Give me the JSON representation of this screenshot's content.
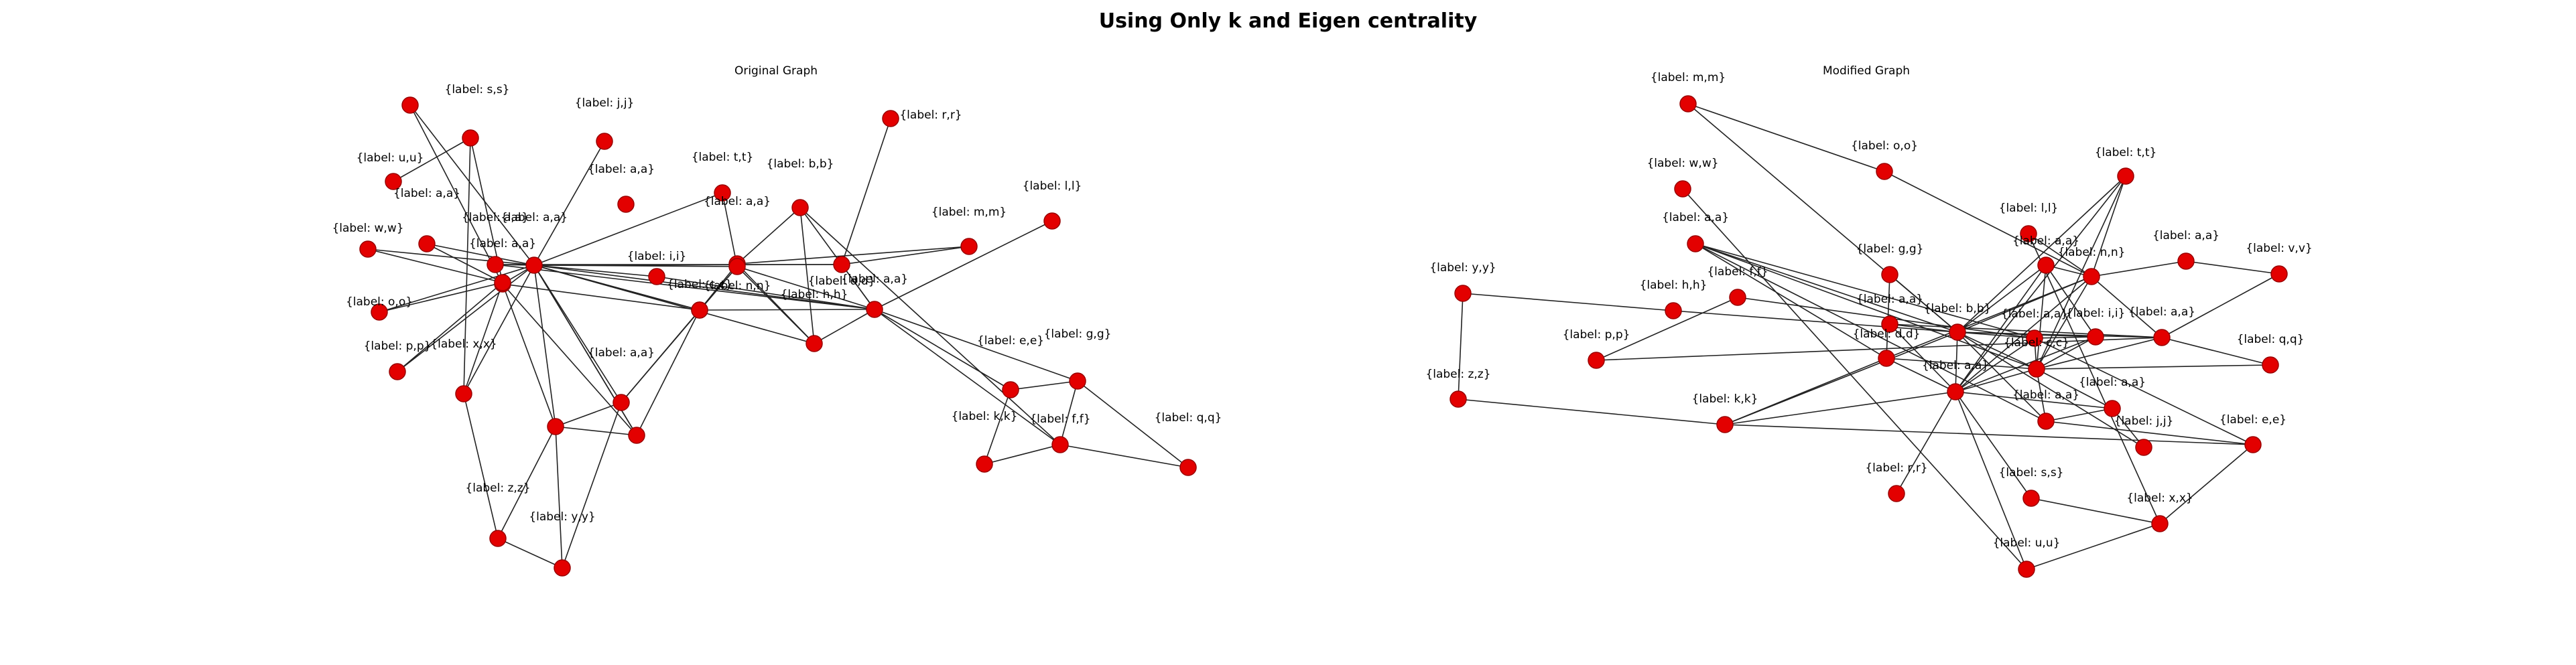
{
  "title": "Using Only k and Eigen centrality",
  "panels": [
    {
      "title": "Original Graph",
      "nodes": [
        {
          "id": "o1",
          "label": "{label: s,s}"
        },
        {
          "id": "o2",
          "label": "{label: j,j}"
        },
        {
          "id": "o3",
          "label": "{label: r,r}"
        },
        {
          "id": "o4",
          "label": "{label: u,u}"
        },
        {
          "id": "o5",
          "label": "{label: t,t}"
        },
        {
          "id": "o6",
          "label": "{label: b,b}"
        },
        {
          "id": "o7",
          "label": "{label: a,a}"
        },
        {
          "id": "o8",
          "label": "{label: l,l}"
        },
        {
          "id": "o9",
          "label": "{label: a,a}"
        },
        {
          "id": "o10",
          "label": "{label: w,w}"
        },
        {
          "id": "o11",
          "label": "{label: m,m}"
        },
        {
          "id": "o12",
          "label": "{label: a,a}"
        },
        {
          "id": "o13",
          "label": "{label: n,n}"
        },
        {
          "id": "o14",
          "label": "{label: d,d}"
        },
        {
          "id": "o15",
          "label": "{label: a,a}"
        },
        {
          "id": "o16",
          "label": "{label: i,i}"
        },
        {
          "id": "o17",
          "label": "{label: o,o}"
        },
        {
          "id": "o18",
          "label": "{label: c,c}"
        },
        {
          "id": "o19",
          "label": "{label: a,a}"
        },
        {
          "id": "o20",
          "label": "{label: h,h}"
        },
        {
          "id": "o21",
          "label": "{label: p,p}"
        },
        {
          "id": "o22",
          "label": "{label: x,x}"
        },
        {
          "id": "o23",
          "label": "{label: e,e}"
        },
        {
          "id": "o24",
          "label": "{label: g,g}"
        },
        {
          "id": "o25",
          "label": "{label: a,a}"
        },
        {
          "id": "o26",
          "label": "{label: a,a}"
        },
        {
          "id": "o27",
          "label": "{label: a,a}"
        },
        {
          "id": "o28",
          "label": "{label: f,f}"
        },
        {
          "id": "o29",
          "label": "{label: k,k}"
        },
        {
          "id": "o30",
          "label": "{label: q,q}"
        },
        {
          "id": "o31",
          "label": "{label: z,z}"
        },
        {
          "id": "o32",
          "label": "{label: y,y}"
        },
        {
          "id": "o33",
          "label": ""
        },
        {
          "id": "o34",
          "label": ""
        },
        {
          "id": "o35",
          "label": ""
        },
        {
          "id": "o36",
          "label": ""
        },
        {
          "id": "o37",
          "label": ""
        }
      ],
      "edges": [
        [
          "o1",
          "o26"
        ],
        [
          "o1",
          "o27"
        ],
        [
          "o4",
          "o33"
        ],
        [
          "o33",
          "o34"
        ],
        [
          "o33",
          "o22"
        ],
        [
          "o2",
          "o26"
        ],
        [
          "o3",
          "o14"
        ],
        [
          "o5",
          "o26"
        ],
        [
          "o5",
          "o13"
        ],
        [
          "o6",
          "o12"
        ],
        [
          "o6",
          "o28"
        ],
        [
          "o6",
          "o20"
        ],
        [
          "o6",
          "o19"
        ],
        [
          "o8",
          "o19"
        ],
        [
          "o9",
          "o26"
        ],
        [
          "o9",
          "o34"
        ],
        [
          "o10",
          "o34"
        ],
        [
          "o10",
          "o26"
        ],
        [
          "o11",
          "o14"
        ],
        [
          "o11",
          "o12"
        ],
        [
          "o12",
          "o13"
        ],
        [
          "o12",
          "o37"
        ],
        [
          "o13",
          "o19"
        ],
        [
          "o14",
          "o19"
        ],
        [
          "o15",
          "o26"
        ],
        [
          "o15",
          "o14"
        ],
        [
          "o15",
          "o19"
        ],
        [
          "o16",
          "o26"
        ],
        [
          "o16",
          "o19"
        ],
        [
          "o17",
          "o34"
        ],
        [
          "o17",
          "o26"
        ],
        [
          "o18",
          "o26"
        ],
        [
          "o18",
          "o19"
        ],
        [
          "o18",
          "o13"
        ],
        [
          "o19",
          "o23"
        ],
        [
          "o19",
          "o24"
        ],
        [
          "o19",
          "o28"
        ],
        [
          "o19",
          "o20"
        ],
        [
          "o20",
          "o13"
        ],
        [
          "o20",
          "o12"
        ],
        [
          "o20",
          "o26"
        ],
        [
          "o21",
          "o26"
        ],
        [
          "o21",
          "o34"
        ],
        [
          "o22",
          "o26"
        ],
        [
          "o22",
          "o34"
        ],
        [
          "o22",
          "o31"
        ],
        [
          "o23",
          "o24"
        ],
        [
          "o23",
          "o29"
        ],
        [
          "o24",
          "o30"
        ],
        [
          "o24",
          "o28"
        ],
        [
          "o28",
          "o29"
        ],
        [
          "o28",
          "o30"
        ],
        [
          "o25",
          "o26"
        ],
        [
          "o25",
          "o32"
        ],
        [
          "o25",
          "o37"
        ],
        [
          "o25",
          "o35"
        ],
        [
          "o25",
          "o13"
        ],
        [
          "o26",
          "o27"
        ],
        [
          "o26",
          "o36"
        ],
        [
          "o26",
          "o35"
        ],
        [
          "o26",
          "o37"
        ],
        [
          "o26",
          "o13"
        ],
        [
          "o26",
          "o14"
        ],
        [
          "o26",
          "o19"
        ],
        [
          "o27",
          "o37"
        ],
        [
          "o27",
          "o36"
        ],
        [
          "o27",
          "o35"
        ],
        [
          "o31",
          "o32"
        ],
        [
          "o31",
          "o35"
        ],
        [
          "o32",
          "o35"
        ],
        [
          "o35",
          "o36"
        ],
        [
          "o36",
          "o37"
        ],
        [
          "o36",
          "o26"
        ]
      ]
    },
    {
      "title": "Modified Graph",
      "nodes": [
        {
          "id": "m1",
          "label": "{label: m,m}"
        },
        {
          "id": "m2",
          "label": "{label: o,o}"
        },
        {
          "id": "m3",
          "label": "{label: w,w}"
        },
        {
          "id": "m4",
          "label": "{label: t,t}"
        },
        {
          "id": "m5",
          "label": "{label: a,a}"
        },
        {
          "id": "m6",
          "label": "{label: l,l}"
        },
        {
          "id": "m7",
          "label": "{label: a,a}"
        },
        {
          "id": "m8",
          "label": "{label: a,a}"
        },
        {
          "id": "m9",
          "label": "{label: g,g}"
        },
        {
          "id": "m10",
          "label": "{label: n,n}"
        },
        {
          "id": "m11",
          "label": "{label: v,v}"
        },
        {
          "id": "m12",
          "label": "{label: y,y}"
        },
        {
          "id": "m13",
          "label": "{label: f,f}"
        },
        {
          "id": "m14",
          "label": "{label: h,h}"
        },
        {
          "id": "m15",
          "label": "{label: a,a}"
        },
        {
          "id": "m16",
          "label": "{label: b,b}"
        },
        {
          "id": "m17",
          "label": "{label: a,a}"
        },
        {
          "id": "m18",
          "label": "{label: i,i}"
        },
        {
          "id": "m19",
          "label": "{label: a,a}"
        },
        {
          "id": "m20",
          "label": "{label: d,d}"
        },
        {
          "id": "m21",
          "label": "{label: p,p}"
        },
        {
          "id": "m22",
          "label": "{label: c,c}"
        },
        {
          "id": "m23",
          "label": "{label: q,q}"
        },
        {
          "id": "m24",
          "label": "{label: z,z}"
        },
        {
          "id": "m25",
          "label": "{label: a,a}"
        },
        {
          "id": "m26",
          "label": "{label: a,a}"
        },
        {
          "id": "m27",
          "label": "{label: k,k}"
        },
        {
          "id": "m28",
          "label": "{label: a,a}"
        },
        {
          "id": "m29",
          "label": "{label: j,j}"
        },
        {
          "id": "m30",
          "label": "{label: e,e}"
        },
        {
          "id": "m31",
          "label": "{label: r,r}"
        },
        {
          "id": "m32",
          "label": "{label: s,s}"
        },
        {
          "id": "m33",
          "label": "{label: x,x}"
        },
        {
          "id": "m34",
          "label": "{label: u,u}"
        }
      ],
      "edges": [
        [
          "m1",
          "m2"
        ],
        [
          "m1",
          "m16"
        ],
        [
          "m2",
          "m10"
        ],
        [
          "m3",
          "m34"
        ],
        [
          "m4",
          "m10"
        ],
        [
          "m4",
          "m26"
        ],
        [
          "m4",
          "m16"
        ],
        [
          "m4",
          "m22"
        ],
        [
          "m5",
          "m17"
        ],
        [
          "m5",
          "m16"
        ],
        [
          "m5",
          "m20"
        ],
        [
          "m5",
          "m22"
        ],
        [
          "m6",
          "m10"
        ],
        [
          "m6",
          "m33"
        ],
        [
          "m7",
          "m10"
        ],
        [
          "m7",
          "m26"
        ],
        [
          "m7",
          "m16"
        ],
        [
          "m7",
          "m22"
        ],
        [
          "m8",
          "m11"
        ],
        [
          "m8",
          "m10"
        ],
        [
          "m9",
          "m16"
        ],
        [
          "m9",
          "m20"
        ],
        [
          "m10",
          "m16"
        ],
        [
          "m10",
          "m26"
        ],
        [
          "m10",
          "m19"
        ],
        [
          "m10",
          "m22"
        ],
        [
          "m10",
          "m20"
        ],
        [
          "m11",
          "m19"
        ],
        [
          "m12",
          "m14"
        ],
        [
          "m12",
          "m24"
        ],
        [
          "m13",
          "m21"
        ],
        [
          "m13",
          "m17"
        ],
        [
          "m14",
          "m16"
        ],
        [
          "m15",
          "m16"
        ],
        [
          "m15",
          "m19"
        ],
        [
          "m15",
          "m26"
        ],
        [
          "m16",
          "m17"
        ],
        [
          "m16",
          "m18"
        ],
        [
          "m16",
          "m22"
        ],
        [
          "m16",
          "m26"
        ],
        [
          "m16",
          "m19"
        ],
        [
          "m16",
          "m28"
        ],
        [
          "m16",
          "m29"
        ],
        [
          "m16",
          "m27"
        ],
        [
          "m17",
          "m22"
        ],
        [
          "m17",
          "m18"
        ],
        [
          "m17",
          "m26"
        ],
        [
          "m17",
          "m30"
        ],
        [
          "m18",
          "m22"
        ],
        [
          "m18",
          "m26"
        ],
        [
          "m19",
          "m22"
        ],
        [
          "m19",
          "m23"
        ],
        [
          "m20",
          "m22"
        ],
        [
          "m20",
          "m26"
        ],
        [
          "m20",
          "m27"
        ],
        [
          "m21",
          "m19"
        ],
        [
          "m22",
          "m23"
        ],
        [
          "m22",
          "m25"
        ],
        [
          "m22",
          "m28"
        ],
        [
          "m22",
          "m26"
        ],
        [
          "m24",
          "m27"
        ],
        [
          "m25",
          "m26"
        ],
        [
          "m25",
          "m28"
        ],
        [
          "m25",
          "m29"
        ],
        [
          "m26",
          "m27"
        ],
        [
          "m26",
          "m31"
        ],
        [
          "m26",
          "m32"
        ],
        [
          "m26",
          "m34"
        ],
        [
          "m27",
          "m30"
        ],
        [
          "m28",
          "m30"
        ],
        [
          "m30",
          "m33"
        ],
        [
          "m32",
          "m33"
        ],
        [
          "m33",
          "m34"
        ],
        [
          "m5",
          "m28"
        ],
        [
          "m7",
          "m18"
        ]
      ]
    }
  ]
}
